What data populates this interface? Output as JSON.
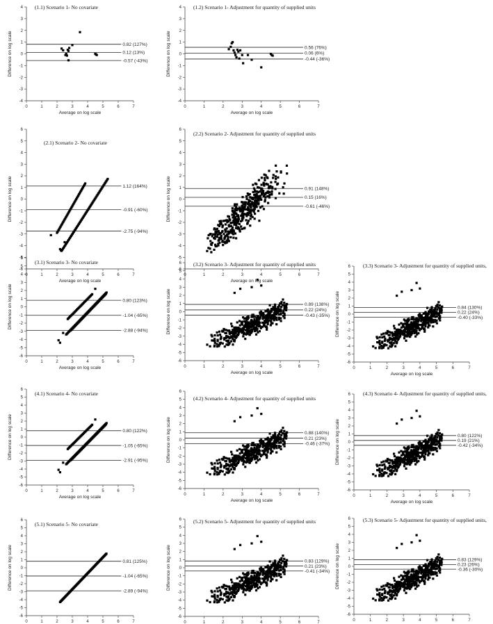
{
  "figure": {
    "xlabel": "Average on log scale",
    "ylabel": "Difference on log scale",
    "xlim": [
      0,
      7
    ],
    "ylim": [
      -6,
      6
    ],
    "x_ticks": [
      "0",
      "1",
      "2",
      "3",
      "4",
      "5",
      "6",
      "7"
    ],
    "y_ticks_full": [
      "-6",
      "-5",
      "-4",
      "-3",
      "-2",
      "-1",
      "0",
      "1",
      "2",
      "3",
      "4",
      "5",
      "6"
    ],
    "y_ticks_short": [
      "-4",
      "-3",
      "-2",
      "-1",
      "0",
      "1",
      "2",
      "3",
      "4"
    ]
  },
  "chart_data": [
    {
      "id": "1.1",
      "type": "scatter",
      "title": "(1.1) Scenario 1- No covariate",
      "ylim": [
        -4,
        4
      ],
      "cluster": "s1a",
      "loa": [
        {
          "value": 0.82,
          "label": "0.82 (127%)"
        },
        {
          "value": 0.12,
          "label": "0.12 (13%)"
        },
        {
          "value": -0.57,
          "label": "-0.57 (-43%)"
        }
      ],
      "points": [
        [
          2.3,
          0.45
        ],
        [
          2.4,
          0.3
        ],
        [
          2.55,
          -0.1
        ],
        [
          2.6,
          0.0
        ],
        [
          2.65,
          -0.15
        ],
        [
          2.7,
          0.35
        ],
        [
          2.75,
          0.25
        ],
        [
          2.8,
          0.5
        ],
        [
          2.75,
          -0.55
        ],
        [
          3.0,
          0.75
        ],
        [
          3.5,
          1.85
        ],
        [
          4.5,
          0.0
        ],
        [
          4.55,
          -0.05
        ],
        [
          4.6,
          -0.1
        ]
      ]
    },
    {
      "id": "1.2",
      "type": "scatter",
      "title": "(1.2) Scenario 1- Adjustment for quantity of supplied units",
      "ylim": [
        -4,
        4
      ],
      "cluster": "s1b",
      "loa": [
        {
          "value": 0.56,
          "label": "0.56 (76%)"
        },
        {
          "value": 0.06,
          "label": "0.06 (6%)"
        },
        {
          "value": -0.44,
          "label": "-0.44 (-36%)"
        }
      ],
      "points": [
        [
          2.3,
          0.4
        ],
        [
          2.4,
          0.6
        ],
        [
          2.45,
          0.9
        ],
        [
          2.5,
          1.0
        ],
        [
          2.55,
          0.3
        ],
        [
          2.6,
          0.1
        ],
        [
          2.65,
          -0.1
        ],
        [
          2.7,
          -0.3
        ],
        [
          2.75,
          0.35
        ],
        [
          2.8,
          0.2
        ],
        [
          2.85,
          -0.4
        ],
        [
          2.9,
          0.3
        ],
        [
          3.0,
          -0.1
        ],
        [
          3.05,
          -0.8
        ],
        [
          3.3,
          -0.1
        ],
        [
          3.5,
          -0.5
        ],
        [
          4.0,
          -1.15
        ],
        [
          4.5,
          0.0
        ],
        [
          4.55,
          -0.1
        ],
        [
          4.6,
          -0.15
        ]
      ]
    },
    {
      "id": "2.1",
      "type": "scatter",
      "title": "(2.1) Scenario 2- No covariate",
      "ylim": [
        -6,
        6
      ],
      "cluster": "s2a",
      "loa": [
        {
          "value": 1.12,
          "label": "1.12 (164%)"
        },
        {
          "value": -0.91,
          "label": "-0.91 (-60%)"
        },
        {
          "value": -2.75,
          "label": "-2.75 (-94%)"
        }
      ]
    },
    {
      "id": "2.2",
      "type": "scatter",
      "title": "(2.2) Scenario 2- Adjustment for quantity of supplied units",
      "ylim": [
        -6,
        6
      ],
      "cluster": "s2b",
      "loa": [
        {
          "value": 0.91,
          "label": "0.91 (148%)"
        },
        {
          "value": 0.15,
          "label": "0.15 (16%)"
        },
        {
          "value": -0.61,
          "label": "-0.61 (-46%)"
        }
      ]
    },
    {
      "id": "3.1",
      "type": "scatter",
      "title": "(3.1) Scenario 3- No covariate",
      "ylim": [
        -6,
        6
      ],
      "cluster": "s3a",
      "loa": [
        {
          "value": 0.8,
          "label": "0.80 (123%)"
        },
        {
          "value": -1.04,
          "label": "-1.04 (-65%)"
        },
        {
          "value": -2.88,
          "label": "-2.88 (-94%)"
        }
      ]
    },
    {
      "id": "3.2",
      "type": "scatter",
      "title": "(3.2) Scenario 3- Adjustment for quantity of supplied units",
      "ylim": [
        -6,
        6
      ],
      "cluster": "sadj",
      "loa": [
        {
          "value": 0.89,
          "label": "0.89 (138%)"
        },
        {
          "value": 0.22,
          "label": "0.22 (24%)"
        },
        {
          "value": -0.43,
          "label": "-0.43 (-35%)"
        }
      ]
    },
    {
      "id": "3.3",
      "type": "scatter",
      "title": "(3.3) Scenario 3- Adjustment for quantity of supplied units,",
      "ylim": [
        -6,
        6
      ],
      "cluster": "sadj",
      "loa": [
        {
          "value": 0.84,
          "label": "0.84 (130%)"
        },
        {
          "value": 0.22,
          "label": "0.22 (24%)"
        },
        {
          "value": -0.4,
          "label": "-0.40 (-33%)"
        }
      ]
    },
    {
      "id": "4.1",
      "type": "scatter",
      "title": "(4.1) Scenario 4- No covariate",
      "ylim": [
        -6,
        6
      ],
      "cluster": "s3a",
      "loa": [
        {
          "value": 0.8,
          "label": "0.80 (122%)"
        },
        {
          "value": -1.05,
          "label": "-1.05 (-65%)"
        },
        {
          "value": -2.91,
          "label": "-2.91 (-95%)"
        }
      ]
    },
    {
      "id": "4.2",
      "type": "scatter",
      "title": "(4.2) Scenario 4- Adjustment for quantity of supplied units",
      "ylim": [
        -6,
        6
      ],
      "cluster": "sadj",
      "loa": [
        {
          "value": 0.88,
          "label": "0.88 (140%)"
        },
        {
          "value": 0.21,
          "label": "0.21 (23%)"
        },
        {
          "value": -0.46,
          "label": "-0.46 (-37%)"
        }
      ]
    },
    {
      "id": "4.3",
      "type": "scatter",
      "title": "(4.3) Scenario 4- Adjustment for quantity of supplied units,",
      "ylim": [
        -6,
        6
      ],
      "cluster": "sadj",
      "loa": [
        {
          "value": 0.8,
          "label": "0.80 (122%)"
        },
        {
          "value": 0.19,
          "label": "0.19 (21%)"
        },
        {
          "value": -0.42,
          "label": "-0.42 (-34%)"
        }
      ]
    },
    {
      "id": "5.1",
      "type": "scatter",
      "title": "(5.1) Scenario 5- No covariate",
      "ylim": [
        -6,
        6
      ],
      "cluster": "s5a",
      "loa": [
        {
          "value": 0.81,
          "label": "0.81 (125%)"
        },
        {
          "value": -1.04,
          "label": "-1.04 (-65%)"
        },
        {
          "value": -2.89,
          "label": "-2.89 (-94%)"
        }
      ]
    },
    {
      "id": "5.2",
      "type": "scatter",
      "title": "(5.2) Scenario 5- Adjustment for quantity of supplied units",
      "ylim": [
        -6,
        6
      ],
      "cluster": "sadj",
      "loa": [
        {
          "value": 0.83,
          "label": "0.83 (129%)"
        },
        {
          "value": 0.21,
          "label": "0.21 (23%)"
        },
        {
          "value": -0.41,
          "label": "-0.41 (-34%)"
        }
      ]
    },
    {
      "id": "5.3",
      "type": "scatter",
      "title": "(5.3) Scenario 5- Adjustment for quantity of supplied units,",
      "ylim": [
        -6,
        6
      ],
      "cluster": "sadj",
      "loa": [
        {
          "value": 0.83,
          "label": "0.83 (129%)"
        },
        {
          "value": 0.23,
          "label": "0.23 (26%)"
        },
        {
          "value": -0.36,
          "label": "-0.36 (-30%)"
        }
      ]
    }
  ]
}
